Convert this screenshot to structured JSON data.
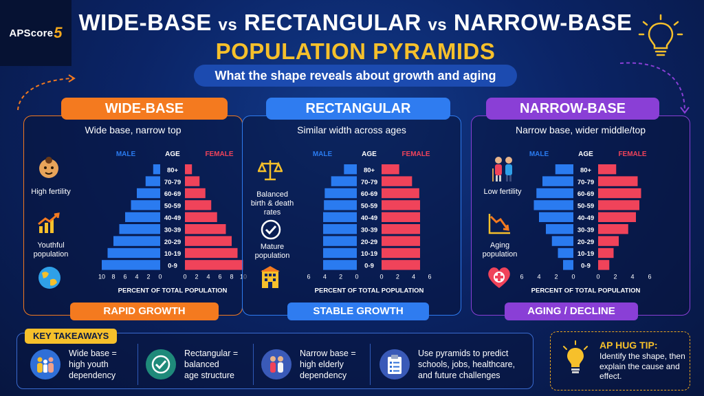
{
  "logo": {
    "text": "APScore",
    "number": "5"
  },
  "title": {
    "line1_a": "WIDE-BASE",
    "vs1": "vs",
    "line1_b": "RECTANGULAR",
    "vs2": "vs",
    "line1_c": "NARROW-BASE",
    "line2": "POPULATION PYRAMIDS",
    "subtitle": "What the shape reveals about growth and aging"
  },
  "colors": {
    "wide": "#f47a1f",
    "rectangular": "#2f7cf0",
    "narrow": "#8a3fd6",
    "male": "#2a7bf0",
    "female": "#f0435a",
    "accent": "#f6c02b"
  },
  "panels": [
    {
      "key": "wide",
      "header": "WIDE-BASE",
      "description": "Wide base, narrow top",
      "footer": "RAPID GROWTH",
      "side": [
        {
          "icon": "baby-icon",
          "label": "High fertility"
        },
        {
          "icon": "growth-chart-icon",
          "label": "Youthful population"
        },
        {
          "icon": "globe-icon",
          "label": ""
        }
      ]
    },
    {
      "key": "rectangular",
      "header": "RECTANGULAR",
      "description": "Similar width across ages",
      "footer": "STABLE GROWTH",
      "side": [
        {
          "icon": "balance-scale-icon",
          "label": "Balanced birth & death rates"
        },
        {
          "icon": "checkmark-icon",
          "label": "Mature population"
        },
        {
          "icon": "building-icon",
          "label": ""
        }
      ]
    },
    {
      "key": "narrow",
      "header": "NARROW-BASE",
      "description": "Narrow base, wider middle/top",
      "footer": "AGING / DECLINE",
      "side": [
        {
          "icon": "elderly-couple-icon",
          "label": "Low fertility"
        },
        {
          "icon": "declining-chart-icon",
          "label": "Aging population"
        },
        {
          "icon": "health-heart-icon",
          "label": ""
        }
      ]
    }
  ],
  "chart_data": [
    {
      "type": "bar",
      "orientation": "horizontal-butterfly",
      "title": "WIDE-BASE",
      "categories": [
        "0-9",
        "10-19",
        "20-29",
        "30-39",
        "40-49",
        "50-59",
        "60-69",
        "70-79",
        "80+"
      ],
      "series": [
        {
          "name": "MALE",
          "values": [
            10,
            9,
            8,
            7,
            6,
            5,
            4,
            2.5,
            1.2
          ]
        },
        {
          "name": "FEMALE",
          "values": [
            10,
            9,
            8,
            7,
            5.5,
            4.5,
            3.5,
            2.5,
            1.2
          ]
        }
      ],
      "xlabel": "PERCENT OF TOTAL POPULATION",
      "ylabel": "AGE",
      "xticks_left": [
        "10",
        "8",
        "6",
        "4",
        "2",
        "0"
      ],
      "xticks_right": [
        "0",
        "2",
        "4",
        "6",
        "8",
        "10"
      ],
      "xlim": [
        0,
        10
      ]
    },
    {
      "type": "bar",
      "orientation": "horizontal-butterfly",
      "title": "RECTANGULAR",
      "categories": [
        "0-9",
        "10-19",
        "20-29",
        "30-39",
        "40-49",
        "50-59",
        "60-69",
        "70-79",
        "80+"
      ],
      "series": [
        {
          "name": "MALE",
          "values": [
            4.2,
            4.2,
            4.2,
            4.2,
            4.2,
            4.1,
            4.0,
            3.2,
            1.6
          ]
        },
        {
          "name": "FEMALE",
          "values": [
            4.8,
            4.8,
            4.8,
            4.8,
            4.8,
            4.8,
            4.7,
            3.8,
            2.2
          ]
        }
      ],
      "xlabel": "PERCENT OF TOTAL POPULATION",
      "ylabel": "AGE",
      "xticks_left": [
        "6",
        "4",
        "2",
        "0"
      ],
      "xticks_right": [
        "0",
        "2",
        "4",
        "6"
      ],
      "xlim": [
        0,
        6
      ]
    },
    {
      "type": "bar",
      "orientation": "horizontal-butterfly",
      "title": "NARROW-BASE",
      "categories": [
        "0-9",
        "10-19",
        "20-29",
        "30-39",
        "40-49",
        "50-59",
        "60-69",
        "70-79",
        "80+"
      ],
      "series": [
        {
          "name": "MALE",
          "values": [
            1.2,
            1.8,
            2.5,
            3.2,
            4.0,
            4.6,
            4.3,
            3.6,
            2.1
          ]
        },
        {
          "name": "FEMALE",
          "values": [
            1.3,
            1.8,
            2.4,
            3.5,
            4.4,
            4.8,
            5.0,
            4.6,
            2.1
          ]
        }
      ],
      "xlabel": "PERCENT OF TOTAL POPULATION",
      "ylabel": "AGE",
      "xticks_left": [
        "6",
        "4",
        "2",
        "0"
      ],
      "xticks_right": [
        "0",
        "2",
        "4",
        "6"
      ],
      "xlim": [
        0,
        6
      ]
    }
  ],
  "takeaways": {
    "label": "KEY TAKEAWAYS",
    "items": [
      {
        "icon": "family-icon",
        "text": "Wide base =\nhigh youth\ndependency"
      },
      {
        "icon": "check-circle-icon",
        "text": "Rectangular =\nbalanced\nage structure"
      },
      {
        "icon": "elderly-people-icon",
        "text": "Narrow base =\nhigh elderly\ndependency"
      },
      {
        "icon": "clipboard-icon",
        "text": "Use pyramids to predict\nschools, jobs, healthcare,\nand future challenges"
      }
    ]
  },
  "tip": {
    "title": "AP HUG TIP:",
    "body": "Identify the shape, then explain the cause and effect."
  }
}
